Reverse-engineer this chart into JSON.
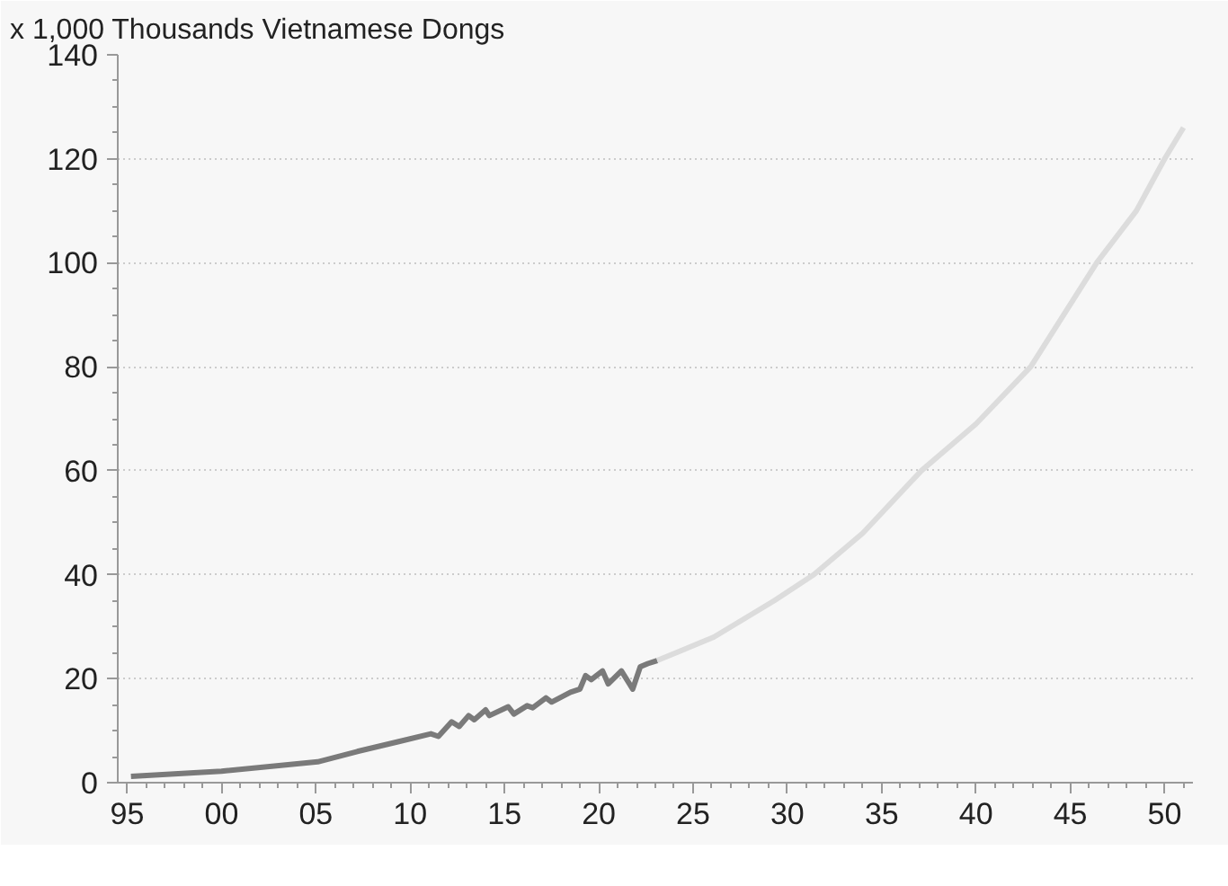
{
  "chart_data": {
    "type": "line",
    "ylabel": "x 1,000 Thousands Vietnamese Dongs",
    "series": [
      {
        "color": "#7a7a7a",
        "x": [
          1995.2,
          2000.0,
          2005.1,
          2007.2,
          2009.4,
          2011.1,
          2011.5,
          2012.2,
          2012.6,
          2013.1,
          2013.4,
          2014.0,
          2014.2,
          2015.2,
          2015.5,
          2016.2,
          2016.5,
          2017.2,
          2017.5,
          2018.5,
          2019.0,
          2019.3,
          2019.6,
          2020.2,
          2020.5,
          2021.2,
          2021.8,
          2022.2,
          2022.6,
          2023.1
        ],
        "values": [
          1.2,
          2.2,
          4.0,
          6.0,
          7.9,
          9.4,
          8.9,
          11.7,
          10.8,
          12.9,
          12.1,
          14.0,
          12.9,
          14.6,
          13.2,
          14.8,
          14.4,
          16.3,
          15.5,
          17.4,
          18.0,
          20.6,
          19.8,
          21.5,
          19.0,
          21.5,
          18.0,
          22.3,
          22.9,
          23.5
        ]
      },
      {
        "color": "#dcdcdc",
        "x": [
          2023.1,
          2026.1,
          2029.3,
          2031.4,
          2034.0,
          2037.1,
          2040.0,
          2042.9,
          2046.4,
          2048.5,
          2050.0,
          2051.0
        ],
        "values": [
          23.5,
          28,
          35,
          40,
          48,
          60,
          69,
          80,
          100,
          110,
          120,
          126
        ]
      }
    ],
    "xlim": [
      1994.5,
      2051.5
    ],
    "xticks": [
      {
        "value": 1995,
        "label": "95"
      },
      {
        "value": 2000,
        "label": "00"
      },
      {
        "value": 2005,
        "label": "05"
      },
      {
        "value": 2010,
        "label": "10"
      },
      {
        "value": 2015,
        "label": "15"
      },
      {
        "value": 2020,
        "label": "20"
      },
      {
        "value": 2025,
        "label": "25"
      },
      {
        "value": 2030,
        "label": "30"
      },
      {
        "value": 2035,
        "label": "35"
      },
      {
        "value": 2040,
        "label": "40"
      },
      {
        "value": 2045,
        "label": "45"
      },
      {
        "value": 2050,
        "label": "50"
      }
    ],
    "ylim": [
      0,
      140
    ],
    "yticks": [
      0,
      20,
      40,
      60,
      80,
      100,
      120,
      140
    ],
    "grid": "y",
    "line_style": "solid"
  }
}
